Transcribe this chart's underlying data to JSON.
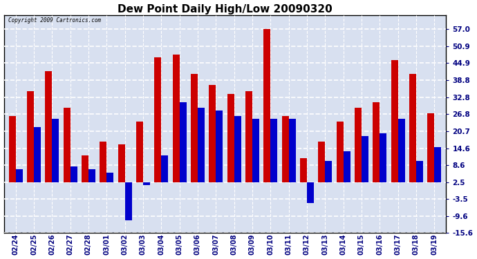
{
  "title": "Dew Point Daily High/Low 20090320",
  "copyright": "Copyright 2009 Cartronics.com",
  "dates": [
    "02/24",
    "02/25",
    "02/26",
    "02/27",
    "02/28",
    "03/01",
    "03/02",
    "03/03",
    "03/04",
    "03/05",
    "03/06",
    "03/07",
    "03/08",
    "03/09",
    "03/10",
    "03/11",
    "03/12",
    "03/13",
    "03/14",
    "03/15",
    "03/16",
    "03/17",
    "03/18",
    "03/19"
  ],
  "highs": [
    26.0,
    35.0,
    42.0,
    29.0,
    12.0,
    17.0,
    16.0,
    24.0,
    47.0,
    48.0,
    41.0,
    37.0,
    34.0,
    35.0,
    57.0,
    26.0,
    11.0,
    17.0,
    24.0,
    29.0,
    31.0,
    46.0,
    41.0,
    27.0
  ],
  "lows": [
    7.0,
    22.0,
    25.0,
    8.0,
    7.0,
    6.0,
    -11.0,
    1.5,
    12.0,
    31.0,
    29.0,
    28.0,
    26.0,
    25.0,
    25.0,
    25.0,
    -5.0,
    10.0,
    13.5,
    19.0,
    20.0,
    25.0,
    10.0,
    15.0
  ],
  "high_color": "#cc0000",
  "low_color": "#0000cc",
  "bg_color": "#ffffff",
  "plot_bg_color": "#d8e0f0",
  "title_color": "#000000",
  "ytick_color": "#000080",
  "xtick_color": "#000080",
  "grid_color": "#ffffff",
  "yticks": [
    -15.6,
    -9.6,
    -3.5,
    2.5,
    8.6,
    14.6,
    20.7,
    26.8,
    32.8,
    38.8,
    44.9,
    50.9,
    57.0
  ],
  "ytick_labels": [
    "-15.6",
    "-9.6",
    "-3.5",
    "2.5",
    "8.6",
    "14.6",
    "20.7",
    "26.8",
    "32.8",
    "38.8",
    "44.9",
    "50.9",
    "57.0"
  ],
  "ymin": -15.6,
  "ymax": 62.0,
  "bar_width": 0.38
}
